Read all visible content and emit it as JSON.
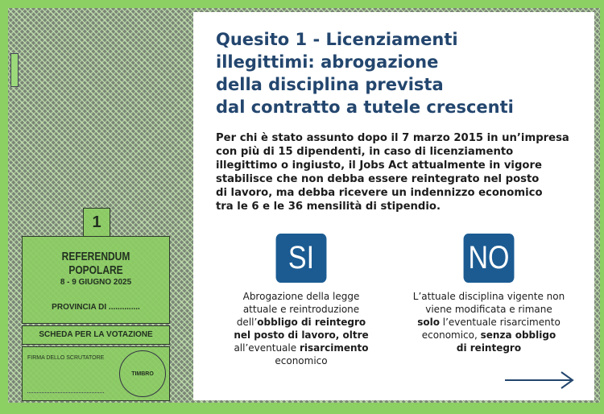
{
  "title_lines": [
    "Quesito 1 - Licenziamenti",
    "illegittimi: abrogazione",
    "della disciplina prevista",
    "dal contratto a tutele crescenti"
  ],
  "body_lines": [
    "Per chi è stato assunto dopo il 7 marzo 2015 in un’impresa",
    "con più di 15 dipendenti, in caso di licenziamento",
    "illegittimo o ingiusto, il Jobs Act attualmente in vigore",
    "stabilisce che non debba essere reintegrato nel posto",
    "di lavoro, ma debba ricevere un indennizzo economico",
    "tra le 6 e le 36 mensilità di stipendio."
  ],
  "si": {
    "label": "SI",
    "caption": [
      [
        {
          "t": "Abrogazione della legge",
          "b": false
        }
      ],
      [
        {
          "t": "attuale e reintroduzione",
          "b": false
        }
      ],
      [
        {
          "t": "dell’",
          "b": false
        },
        {
          "t": "obbligo di reintegro",
          "b": true
        }
      ],
      [
        {
          "t": "nel posto di lavoro, oltre",
          "b": true
        }
      ],
      [
        {
          "t": "all’eventuale ",
          "b": false
        },
        {
          "t": "risarcimento",
          "b": true
        }
      ],
      [
        {
          "t": "economico",
          "b": false
        }
      ]
    ]
  },
  "no": {
    "label": "NO",
    "caption": [
      [
        {
          "t": "L’attuale disciplina vigente non",
          "b": false
        }
      ],
      [
        {
          "t": "viene modificata e rimane",
          "b": false
        }
      ],
      [
        {
          "t": "solo",
          "b": true
        },
        {
          "t": " l’eventuale risarcimento",
          "b": false
        }
      ],
      [
        {
          "t": "economico, ",
          "b": false
        },
        {
          "t": "senza obbligo",
          "b": true
        }
      ],
      [
        {
          "t": "di reintegro",
          "b": true
        }
      ]
    ]
  },
  "ballot": {
    "number": "1",
    "heading": "REFERENDUM POPOLARE",
    "date": "8 - 9 GIUGNO 2025",
    "province": "PROVINCIA DI ..............",
    "scheda": "SCHEDA PER LA VOTAZIONE",
    "firma": "FIRMA DELLO SCRUTATORE",
    "timbro": "TIMBRO"
  },
  "colors": {
    "accent": "#1b5b92",
    "title": "#23466e",
    "border_green": "#8ccf62"
  }
}
